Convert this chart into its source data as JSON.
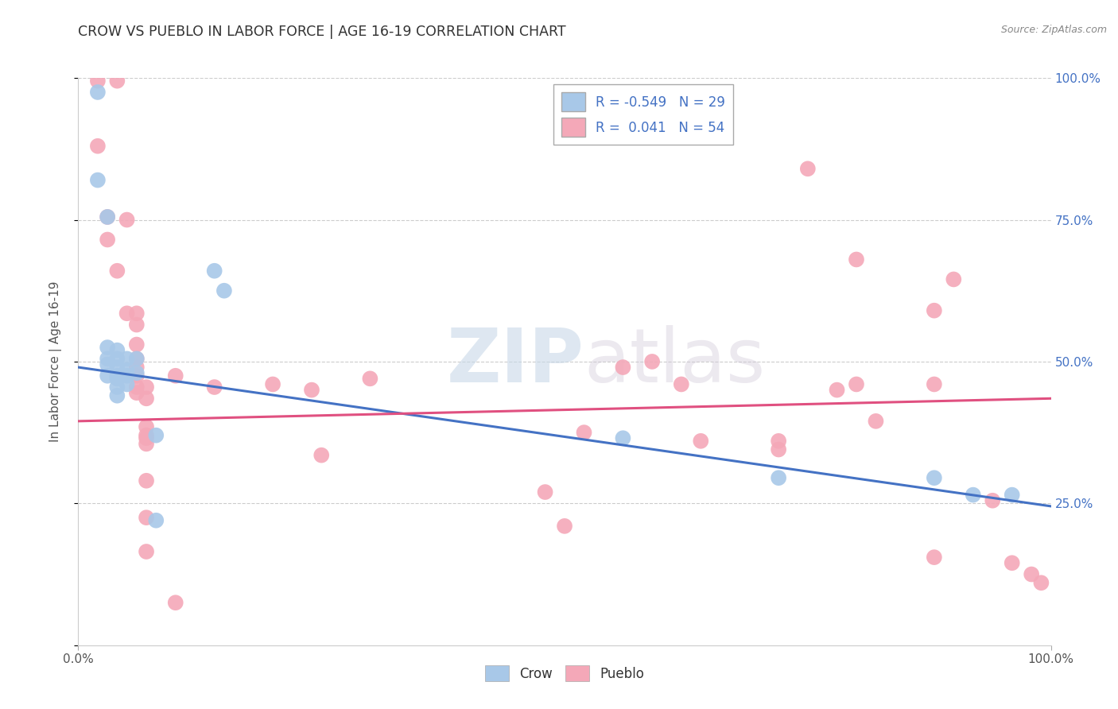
{
  "title": "CROW VS PUEBLO IN LABOR FORCE | AGE 16-19 CORRELATION CHART",
  "source": "Source: ZipAtlas.com",
  "ylabel": "In Labor Force | Age 16-19",
  "xlim": [
    0.0,
    1.0
  ],
  "ylim": [
    0.0,
    1.0
  ],
  "legend_crow_r": "-0.549",
  "legend_crow_n": "29",
  "legend_pueblo_r": "0.041",
  "legend_pueblo_n": "54",
  "crow_color": "#a8c8e8",
  "pueblo_color": "#f4a8b8",
  "crow_line_color": "#4472c4",
  "pueblo_line_color": "#e05080",
  "watermark_zip": "ZIP",
  "watermark_atlas": "atlas",
  "crow_scatter": [
    [
      0.02,
      0.975
    ],
    [
      0.02,
      0.82
    ],
    [
      0.03,
      0.755
    ],
    [
      0.03,
      0.525
    ],
    [
      0.03,
      0.505
    ],
    [
      0.03,
      0.495
    ],
    [
      0.03,
      0.475
    ],
    [
      0.04,
      0.52
    ],
    [
      0.04,
      0.505
    ],
    [
      0.04,
      0.49
    ],
    [
      0.04,
      0.475
    ],
    [
      0.04,
      0.47
    ],
    [
      0.04,
      0.455
    ],
    [
      0.04,
      0.44
    ],
    [
      0.05,
      0.505
    ],
    [
      0.05,
      0.485
    ],
    [
      0.05,
      0.475
    ],
    [
      0.05,
      0.46
    ],
    [
      0.06,
      0.505
    ],
    [
      0.06,
      0.48
    ],
    [
      0.08,
      0.37
    ],
    [
      0.08,
      0.22
    ],
    [
      0.14,
      0.66
    ],
    [
      0.15,
      0.625
    ],
    [
      0.56,
      0.365
    ],
    [
      0.72,
      0.295
    ],
    [
      0.88,
      0.295
    ],
    [
      0.92,
      0.265
    ],
    [
      0.96,
      0.265
    ]
  ],
  "pueblo_scatter": [
    [
      0.02,
      0.995
    ],
    [
      0.04,
      0.995
    ],
    [
      0.02,
      0.88
    ],
    [
      0.03,
      0.755
    ],
    [
      0.03,
      0.715
    ],
    [
      0.05,
      0.75
    ],
    [
      0.04,
      0.66
    ],
    [
      0.05,
      0.585
    ],
    [
      0.06,
      0.585
    ],
    [
      0.06,
      0.565
    ],
    [
      0.06,
      0.53
    ],
    [
      0.06,
      0.505
    ],
    [
      0.06,
      0.49
    ],
    [
      0.06,
      0.475
    ],
    [
      0.06,
      0.455
    ],
    [
      0.06,
      0.445
    ],
    [
      0.07,
      0.455
    ],
    [
      0.07,
      0.435
    ],
    [
      0.07,
      0.385
    ],
    [
      0.07,
      0.37
    ],
    [
      0.07,
      0.365
    ],
    [
      0.07,
      0.355
    ],
    [
      0.07,
      0.29
    ],
    [
      0.07,
      0.225
    ],
    [
      0.07,
      0.165
    ],
    [
      0.1,
      0.075
    ],
    [
      0.1,
      0.475
    ],
    [
      0.14,
      0.455
    ],
    [
      0.2,
      0.46
    ],
    [
      0.24,
      0.45
    ],
    [
      0.25,
      0.335
    ],
    [
      0.3,
      0.47
    ],
    [
      0.48,
      0.27
    ],
    [
      0.5,
      0.21
    ],
    [
      0.52,
      0.375
    ],
    [
      0.56,
      0.49
    ],
    [
      0.59,
      0.5
    ],
    [
      0.62,
      0.46
    ],
    [
      0.64,
      0.36
    ],
    [
      0.72,
      0.36
    ],
    [
      0.72,
      0.345
    ],
    [
      0.75,
      0.84
    ],
    [
      0.78,
      0.45
    ],
    [
      0.8,
      0.46
    ],
    [
      0.8,
      0.68
    ],
    [
      0.82,
      0.395
    ],
    [
      0.88,
      0.46
    ],
    [
      0.88,
      0.59
    ],
    [
      0.88,
      0.155
    ],
    [
      0.9,
      0.645
    ],
    [
      0.94,
      0.255
    ],
    [
      0.96,
      0.145
    ],
    [
      0.98,
      0.125
    ],
    [
      0.99,
      0.11
    ]
  ],
  "crow_trend_x": [
    0.0,
    1.0
  ],
  "crow_trend_y": [
    0.49,
    0.245
  ],
  "pueblo_trend_x": [
    0.0,
    1.0
  ],
  "pueblo_trend_y": [
    0.395,
    0.435
  ]
}
